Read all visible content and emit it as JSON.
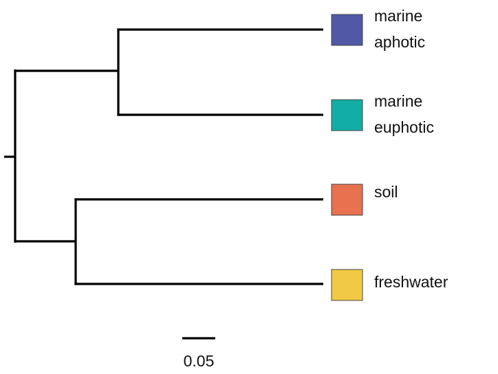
{
  "tips": [
    {
      "lines": [
        "marine",
        "aphotic"
      ],
      "color": "#5158a6"
    },
    {
      "lines": [
        "marine",
        "euphotic"
      ],
      "color": "#12ada5"
    },
    {
      "lines": [
        "soil"
      ],
      "color": "#e8714f"
    },
    {
      "lines": [
        "freshwater"
      ],
      "color": "#f2c945"
    }
  ],
  "scale_bar": {
    "label": "0.05"
  }
}
